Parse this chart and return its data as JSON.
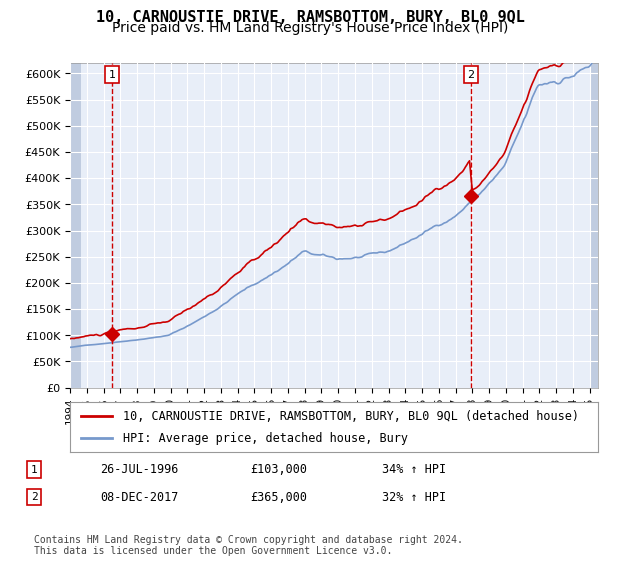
{
  "title": "10, CARNOUSTIE DRIVE, RAMSBOTTOM, BURY, BL0 9QL",
  "subtitle": "Price paid vs. HM Land Registry's House Price Index (HPI)",
  "xlabel": "",
  "ylabel": "",
  "ylim": [
    0,
    620000
  ],
  "yticks": [
    0,
    50000,
    100000,
    150000,
    200000,
    250000,
    300000,
    350000,
    400000,
    450000,
    500000,
    550000,
    600000
  ],
  "ytick_labels": [
    "£0",
    "£50K",
    "£100K",
    "£150K",
    "£200K",
    "£250K",
    "£300K",
    "£350K",
    "£400K",
    "£450K",
    "£500K",
    "£550K",
    "£600K"
  ],
  "sale1_date": "26-JUL-1996",
  "sale1_price": 103000,
  "sale1_label": "1",
  "sale1_pct": "34% ↑ HPI",
  "sale2_date": "08-DEC-2017",
  "sale2_price": 365000,
  "sale2_label": "2",
  "sale2_pct": "32% ↑ HPI",
  "legend_line1": "10, CARNOUSTIE DRIVE, RAMSBOTTOM, BURY, BL0 9QL (detached house)",
  "legend_line2": "HPI: Average price, detached house, Bury",
  "footer": "Contains HM Land Registry data © Crown copyright and database right 2024.\nThis data is licensed under the Open Government Licence v3.0.",
  "bg_color": "#dde8f8",
  "plot_bg": "#e8eef8",
  "hatch_color": "#c0cce0",
  "red_line_color": "#cc0000",
  "blue_line_color": "#7799cc",
  "grid_color": "#ffffff",
  "marker_color": "#cc0000",
  "title_fontsize": 11,
  "subtitle_fontsize": 10,
  "tick_fontsize": 8,
  "legend_fontsize": 8.5,
  "footer_fontsize": 7
}
